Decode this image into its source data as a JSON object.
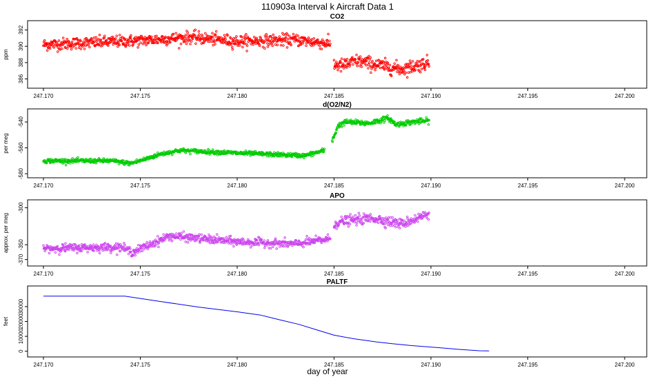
{
  "figure": {
    "main_title": "110903a   Interval k Aircraft Data 1",
    "xlabel": "day of year"
  },
  "chart_data": [
    {
      "type": "scatter",
      "title": "CO2",
      "ylabel": "ppm",
      "color": "#ff0000",
      "xlim": [
        247.17,
        247.2
      ],
      "ylim": [
        385.2,
        392.8
      ],
      "xticks": [
        247.17,
        247.175,
        247.18,
        247.185,
        247.19,
        247.195,
        247.2
      ],
      "xtick_labels": [
        "247.170",
        "247.175",
        "247.180",
        "247.185",
        "247.190",
        "247.195",
        "247.200"
      ],
      "yticks": [
        386,
        388,
        390,
        392
      ],
      "ytick_labels": [
        "386",
        "388",
        "390",
        "392"
      ],
      "segments": [
        {
          "x": [
            247.17,
            247.175,
            247.1776,
            247.18,
            247.183,
            247.1848
          ],
          "y": [
            390.2,
            390.7,
            391.1,
            390.6,
            390.8,
            390.3
          ],
          "noise": 0.65
        },
        {
          "x": [
            247.185,
            247.1854,
            247.1862,
            247.1875,
            247.188,
            247.1885,
            247.1899
          ],
          "y": [
            387.8,
            387.6,
            388.2,
            387.6,
            387.4,
            387.2,
            388.0
          ],
          "noise": 0.75
        }
      ]
    },
    {
      "type": "scatter",
      "title": "d(O2/N2)",
      "ylabel": "per meg",
      "color": "#00cc00",
      "xlim": [
        247.17,
        247.2
      ],
      "ylim": [
        -581,
        -532
      ],
      "xticks": [
        247.17,
        247.175,
        247.18,
        247.185,
        247.19,
        247.195,
        247.2
      ],
      "xtick_labels": [
        "247.170",
        "247.175",
        "247.180",
        "247.185",
        "247.190",
        "247.195",
        "247.200"
      ],
      "yticks": [
        -580,
        -560,
        -540
      ],
      "ytick_labels": [
        "-580",
        "-560",
        "-540"
      ],
      "segments": [
        {
          "x": [
            247.17,
            247.1735,
            247.1745,
            247.1752,
            247.176,
            247.177,
            247.18,
            247.1835,
            247.1845
          ],
          "y": [
            -570,
            -570,
            -572,
            -569,
            -565,
            -562,
            -564,
            -566,
            -562
          ],
          "noise": 1.5
        },
        {
          "x": [
            247.1849,
            247.1852,
            247.1856,
            247.1868,
            247.1878,
            247.1882,
            247.189,
            247.1899
          ],
          "y": [
            -555,
            -543,
            -540,
            -541,
            -537,
            -542,
            -540,
            -539
          ],
          "noise": 1.8
        }
      ]
    },
    {
      "type": "scatter",
      "title": "APO",
      "ylabel": "approx. per meg",
      "color": "#cc44ee",
      "xlim": [
        247.17,
        247.2
      ],
      "ylim": [
        -375,
        -293
      ],
      "xticks": [
        247.17,
        247.175,
        247.18,
        247.185,
        247.19,
        247.195,
        247.2
      ],
      "xtick_labels": [
        "247.170",
        "247.175",
        "247.180",
        "247.185",
        "247.190",
        "247.195",
        "247.200"
      ],
      "yticks": [
        -370,
        -350,
        -300
      ],
      "ytick_labels": [
        "-370",
        "-350",
        "-300"
      ],
      "segments": [
        {
          "x": [
            247.17,
            247.174,
            247.1746,
            247.1755,
            247.1765,
            247.18,
            247.183,
            247.1848
          ],
          "y": [
            -355,
            -353,
            -360,
            -350,
            -338,
            -346,
            -349,
            -342
          ],
          "noise": 5
        },
        {
          "x": [
            247.185,
            247.1855,
            247.187,
            247.1885,
            247.1899
          ],
          "y": [
            -322,
            -318,
            -314,
            -322,
            -308
          ],
          "noise": 6
        }
      ]
    },
    {
      "type": "line",
      "title": "PALTF",
      "ylabel": "feet",
      "color": "#0000ee",
      "xlim": [
        247.17,
        247.2
      ],
      "ylim": [
        -2000,
        42000
      ],
      "xticks": [
        247.17,
        247.175,
        247.18,
        247.185,
        247.19,
        247.195,
        247.2
      ],
      "xtick_labels": [
        "247.170",
        "247.175",
        "247.180",
        "247.185",
        "247.190",
        "247.195",
        "247.200"
      ],
      "yticks": [
        0,
        10000,
        20000,
        30000
      ],
      "ytick_labels": [
        "0",
        "10000",
        "20000",
        "30000"
      ],
      "x": [
        247.17,
        247.1742,
        247.176,
        247.178,
        247.18,
        247.1812,
        247.1822,
        247.1832,
        247.1842,
        247.185,
        247.186,
        247.1872,
        247.188,
        247.189,
        247.1905,
        247.1915,
        247.1925,
        247.193
      ],
      "y": [
        37000,
        37000,
        33500,
        29700,
        26500,
        24300,
        21100,
        18000,
        14000,
        10800,
        8400,
        6200,
        5100,
        3800,
        2300,
        1200,
        300,
        200
      ]
    }
  ]
}
